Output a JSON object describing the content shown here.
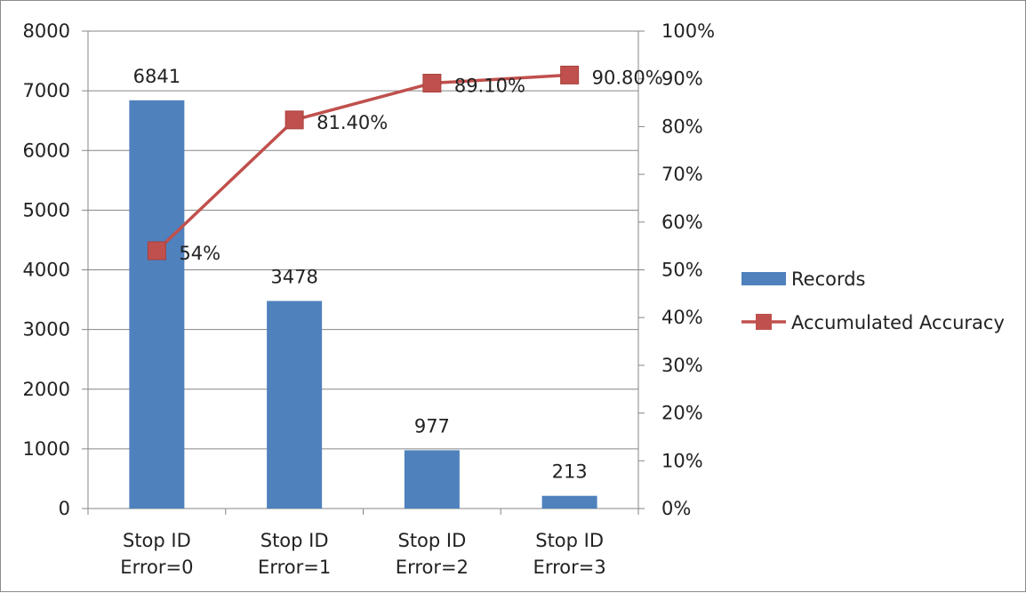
{
  "chart_data": {
    "type": "bar",
    "categories": [
      [
        "Stop ID",
        "Error=0"
      ],
      [
        "Stop ID",
        "Error=1"
      ],
      [
        "Stop ID",
        "Error=2"
      ],
      [
        "Stop ID",
        "Error=3"
      ]
    ],
    "series": [
      {
        "name": "Records",
        "type": "bar",
        "axis": "left",
        "color": "#4f81bd",
        "values": [
          6841,
          3478,
          977,
          213
        ],
        "labels": [
          "6841",
          "3478",
          "977",
          "213"
        ]
      },
      {
        "name": "Accumulated Accuracy",
        "type": "line",
        "axis": "right",
        "color": "#c0504d",
        "marker": "square",
        "values": [
          54,
          81.4,
          89.1,
          90.8
        ],
        "labels": [
          "54%",
          "81.40%",
          "89.10%",
          "90.80%"
        ]
      }
    ],
    "y_left": {
      "lim": [
        0,
        8000
      ],
      "ticks": [
        "0",
        "1000",
        "2000",
        "3000",
        "4000",
        "5000",
        "6000",
        "7000",
        "8000"
      ]
    },
    "y_right": {
      "lim": [
        0,
        100
      ],
      "ticks": [
        "0%",
        "10%",
        "20%",
        "30%",
        "40%",
        "50%",
        "60%",
        "70%",
        "80%",
        "90%",
        "100%"
      ]
    },
    "grid": true,
    "legend_position": "right"
  }
}
